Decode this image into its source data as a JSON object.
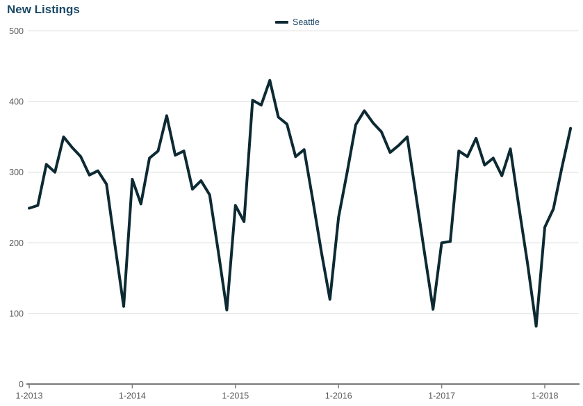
{
  "page_title": "New Listings",
  "legend": {
    "series_label": "Seattle",
    "swatch_color": "#0d2a33",
    "position": "top-center"
  },
  "colors": {
    "title_text": "#1c4966",
    "line": "#0d2a33",
    "gridline": "#d9d9d9",
    "axis_line": "#7f7f7f",
    "tick_label": "#595959",
    "background": "#ffffff"
  },
  "chart_data": {
    "type": "line",
    "title": "New Listings",
    "xlabel": "",
    "ylabel": "",
    "ylim": [
      0,
      500
    ],
    "grid": "horizontal",
    "legend_position": "top-center",
    "y_ticks": [
      0,
      100,
      200,
      300,
      400,
      500
    ],
    "y_tick_labels": [
      "0",
      "100",
      "200",
      "300",
      "400",
      "500"
    ],
    "x_tick_labels": [
      "1-2013",
      "1-2014",
      "1-2015",
      "1-2016",
      "1-2017",
      "1-2018"
    ],
    "x_tick_month_indices": [
      0,
      12,
      24,
      36,
      48,
      60
    ],
    "x_unit": "month",
    "x_range_note": "monthly points from 1-2013 through 4-2018",
    "series": [
      {
        "name": "Seattle",
        "values": [
          249,
          253,
          311,
          300,
          350,
          335,
          322,
          296,
          302,
          283,
          195,
          110,
          290,
          255,
          320,
          330,
          380,
          324,
          330,
          276,
          288,
          268,
          188,
          105,
          253,
          230,
          402,
          395,
          430,
          378,
          368,
          322,
          332,
          261,
          187,
          120,
          236,
          300,
          367,
          387,
          370,
          357,
          328,
          338,
          350,
          268,
          186,
          106,
          200,
          202,
          330,
          322,
          348,
          310,
          320,
          295,
          333,
          250,
          170,
          82,
          222,
          248,
          307,
          362
        ]
      }
    ]
  }
}
